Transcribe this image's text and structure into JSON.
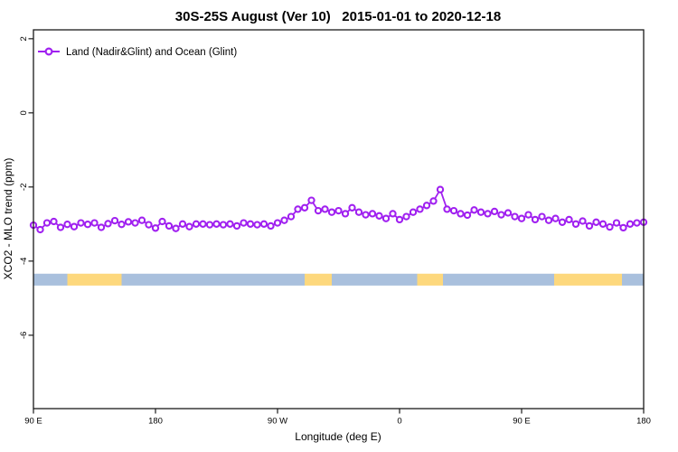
{
  "chart_data": {
    "type": "line",
    "title": "30S-25S August (Ver 10)   2015-01-01 to 2020-12-18",
    "xlabel": "Longitude (deg E)",
    "ylabel": "XCO2 - MLO trend (ppm)",
    "legend": [
      {
        "label": "Land (Nadir&Glint) and Ocean (Glint)",
        "color": "#A020F0",
        "marker": "open-circle-on-line",
        "position": "top-left"
      }
    ],
    "grid": false,
    "x_range_axis_deg": [
      90,
      540
    ],
    "ylim": [
      -7.98,
      2.24
    ],
    "x_ticks": [
      {
        "pos": 90,
        "label": "90 E"
      },
      {
        "pos": 180,
        "label": "180"
      },
      {
        "pos": 270,
        "label": "90 W"
      },
      {
        "pos": 360,
        "label": "0"
      },
      {
        "pos": 450,
        "label": "90 E"
      },
      {
        "pos": 540,
        "label": "180"
      }
    ],
    "y_ticks": [
      {
        "pos": 2,
        "label": "2"
      },
      {
        "pos": 0,
        "label": "0"
      },
      {
        "pos": -2,
        "label": "-2"
      },
      {
        "pos": -4,
        "label": "-4"
      },
      {
        "pos": -6,
        "label": "-6"
      }
    ],
    "series": [
      {
        "name": "Land (Nadir&Glint) and Ocean (Glint)",
        "color": "#A020F0",
        "x_start_deg": 90,
        "x_step_deg": 5,
        "values": [
          -3.03,
          -3.15,
          -2.97,
          -2.93,
          -3.09,
          -3.01,
          -3.07,
          -2.97,
          -3.01,
          -2.97,
          -3.09,
          -2.99,
          -2.91,
          -3.01,
          -2.94,
          -2.97,
          -2.9,
          -3.02,
          -3.11,
          -2.93,
          -3.05,
          -3.12,
          -3.0,
          -3.07,
          -3.0,
          -3.0,
          -3.02,
          -3.0,
          -3.02,
          -3.0,
          -3.05,
          -2.97,
          -3.0,
          -3.02,
          -3.0,
          -3.05,
          -2.97,
          -2.9,
          -2.8,
          -2.6,
          -2.56,
          -2.36,
          -2.64,
          -2.6,
          -2.68,
          -2.64,
          -2.72,
          -2.56,
          -2.68,
          -2.75,
          -2.72,
          -2.78,
          -2.85,
          -2.72,
          -2.88,
          -2.8,
          -2.68,
          -2.6,
          -2.5,
          -2.38,
          -2.07,
          -2.6,
          -2.64,
          -2.72,
          -2.76,
          -2.62,
          -2.68,
          -2.72,
          -2.66,
          -2.75,
          -2.7,
          -2.8,
          -2.85,
          -2.75,
          -2.88,
          -2.8,
          -2.9,
          -2.85,
          -2.95,
          -2.88,
          -3.0,
          -2.92,
          -3.05,
          -2.95,
          -3.0,
          -3.08,
          -2.97,
          -3.1,
          -3.0,
          -2.97,
          -2.95
        ]
      }
    ],
    "surface_band": {
      "description": "land/ocean surface indicator strip",
      "y_range_value": [
        -4.66,
        -4.34
      ],
      "colors": {
        "ocean": "#A9C0DD",
        "land": "#FDD87D"
      },
      "segments": [
        {
          "type": "ocean",
          "from_deg": 90,
          "to_deg": 115
        },
        {
          "type": "land",
          "from_deg": 115,
          "to_deg": 155
        },
        {
          "type": "ocean",
          "from_deg": 155,
          "to_deg": 290
        },
        {
          "type": "land",
          "from_deg": 290,
          "to_deg": 310
        },
        {
          "type": "ocean",
          "from_deg": 310,
          "to_deg": 373
        },
        {
          "type": "land",
          "from_deg": 373,
          "to_deg": 392
        },
        {
          "type": "ocean",
          "from_deg": 392,
          "to_deg": 474
        },
        {
          "type": "land",
          "from_deg": 474,
          "to_deg": 524
        },
        {
          "type": "ocean",
          "from_deg": 524,
          "to_deg": 540
        }
      ]
    }
  }
}
